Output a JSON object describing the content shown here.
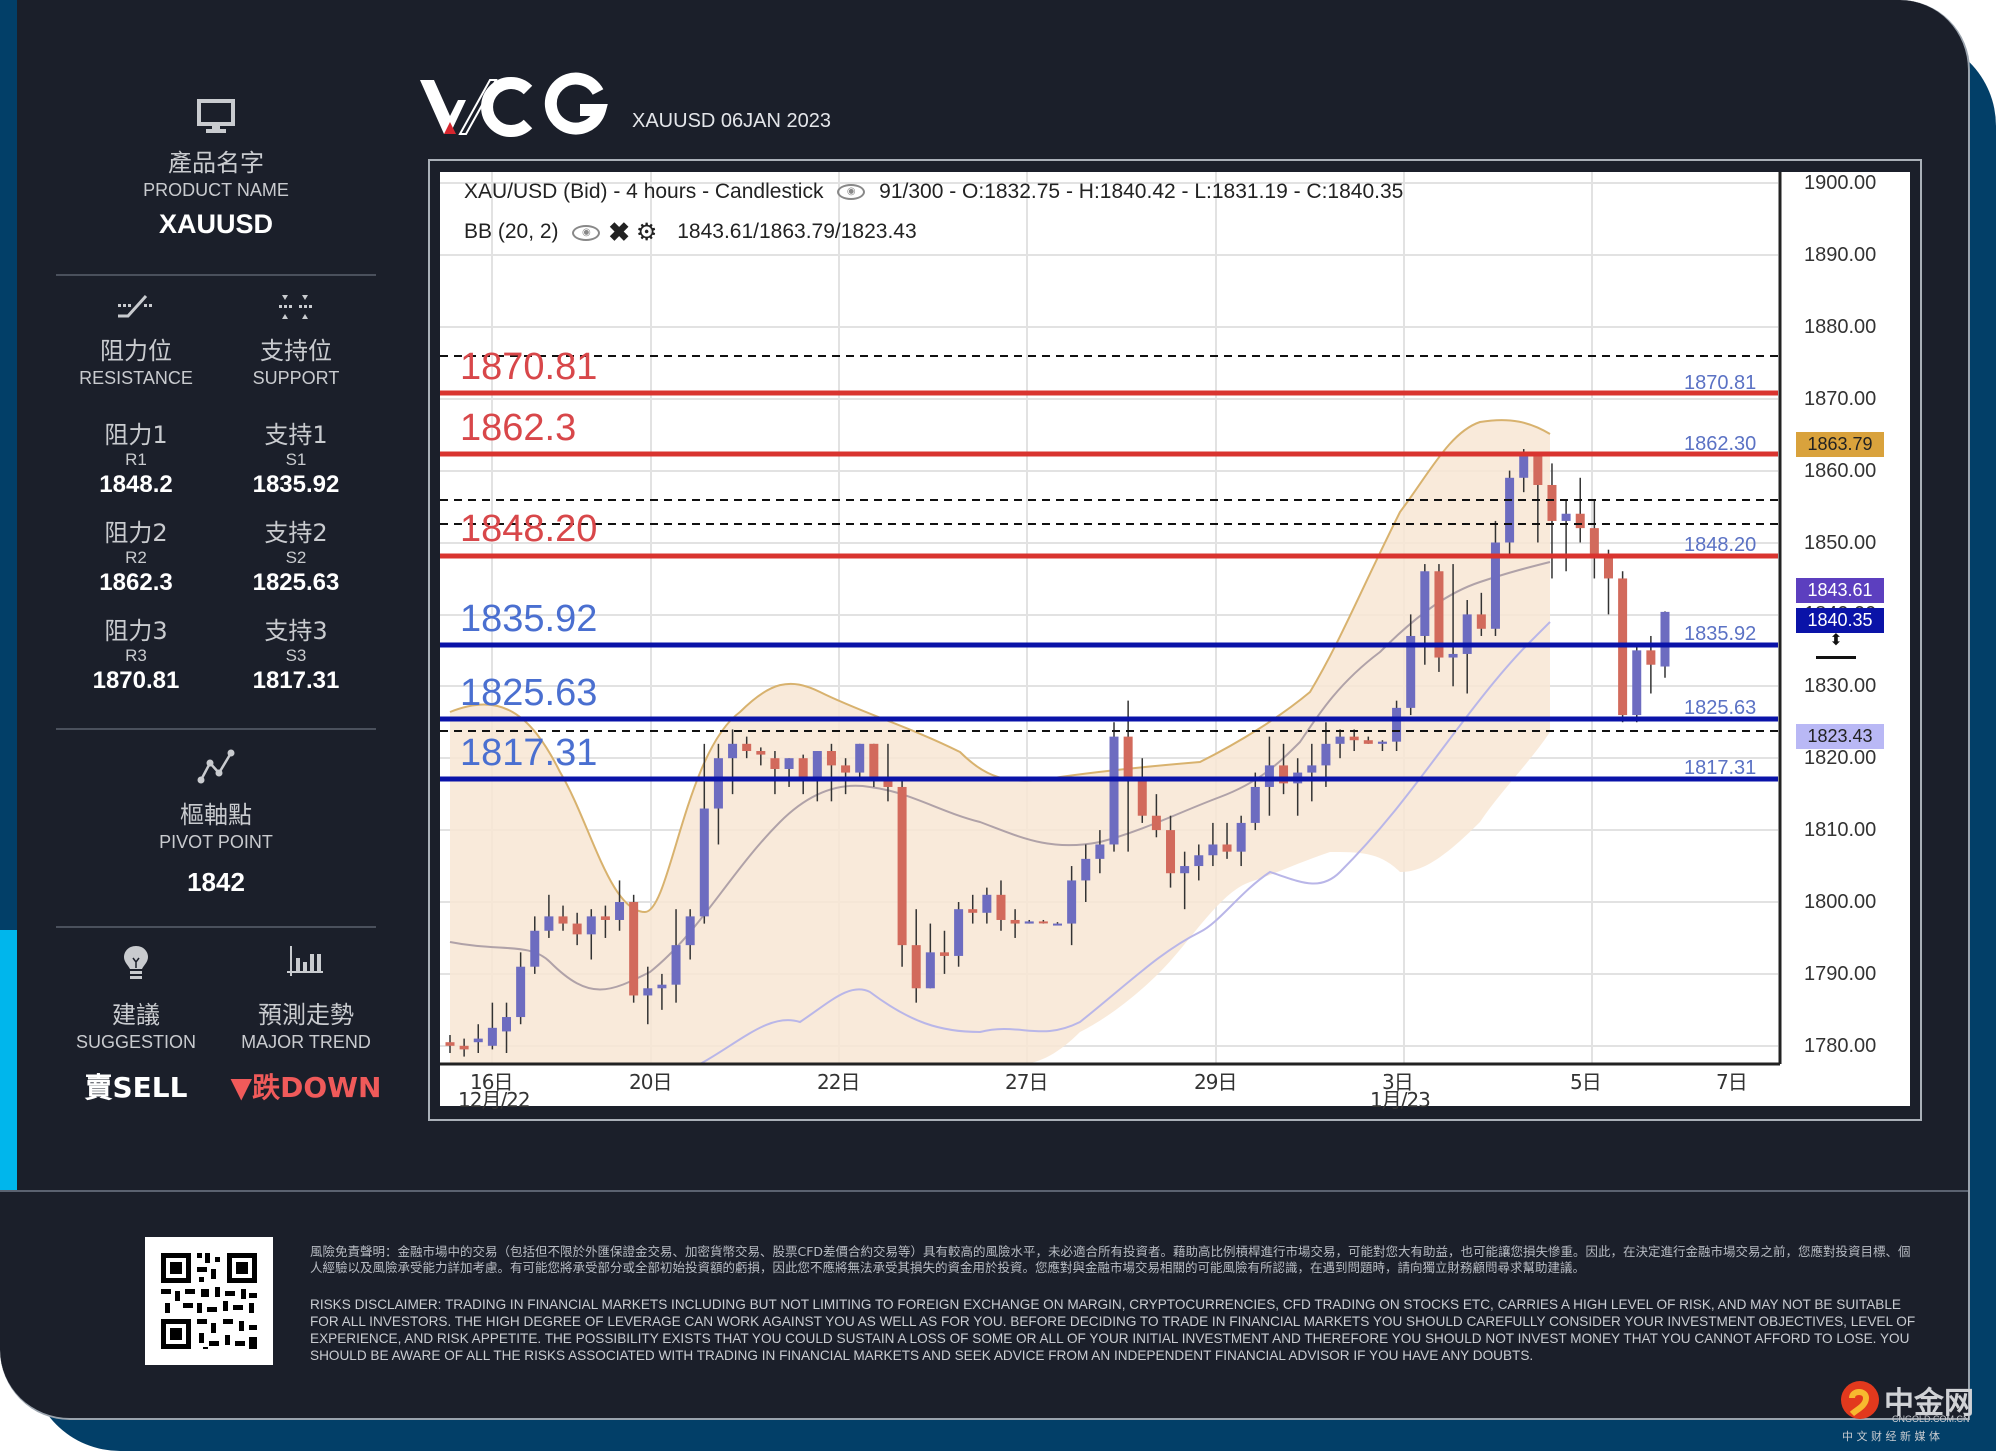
{
  "header": {
    "brand": "WCG",
    "subtitle": "XAUUSD 06JAN 2023"
  },
  "sidebar": {
    "product": {
      "icon": "monitor-icon",
      "label_cn": "產品名字",
      "label_en": "PRODUCT NAME",
      "value": "XAUUSD"
    },
    "resistance": {
      "icon": "resistance-icon",
      "label_cn": "阻力位",
      "label_en": "RESISTANCE",
      "levels": [
        {
          "label_cn": "阻力1",
          "code": "R1",
          "value": "1848.2"
        },
        {
          "label_cn": "阻力2",
          "code": "R2",
          "value": "1862.3"
        },
        {
          "label_cn": "阻力3",
          "code": "R3",
          "value": "1870.81"
        }
      ]
    },
    "support": {
      "icon": "support-icon",
      "label_cn": "支持位",
      "label_en": "SUPPORT",
      "levels": [
        {
          "label_cn": "支持1",
          "code": "S1",
          "value": "1835.92"
        },
        {
          "label_cn": "支持2",
          "code": "S2",
          "value": "1825.63"
        },
        {
          "label_cn": "支持3",
          "code": "S3",
          "value": "1817.31"
        }
      ]
    },
    "pivot": {
      "icon": "pivot-chart-icon",
      "label_cn": "樞軸點",
      "label_en": "PIVOT POINT",
      "value": "1842"
    },
    "suggestion": {
      "icon": "lightbulb-icon",
      "label_cn": "建議",
      "label_en": "SUGGESTION",
      "value": "賣SELL"
    },
    "trend": {
      "icon": "bar-chart-icon",
      "label_cn": "預測走勢",
      "label_en": "MAJOR TREND",
      "value": "▼跌DOWN",
      "color": "#f05a5a"
    }
  },
  "chart": {
    "title": "XAU/USD (Bid) - 4 hours - Candlestick",
    "bars_info": "91/300 - O:1832.75 - H:1840.42 - L:1831.19 - C:1840.35",
    "bb_label": "BB (20, 2)",
    "bb_values": "1843.61/1863.79/1823.43",
    "price_badges": {
      "bb_upper": "1863.79",
      "bb_mid": "1843.61",
      "last": "1840.35",
      "bb_lower": "1823.43"
    }
  },
  "chart_data": {
    "type": "candlestick",
    "title": "XAU/USD (Bid) - 4 hours - Candlestick",
    "xlabel": "",
    "ylabel": "",
    "ylim": [
      1778,
      1902
    ],
    "y_ticks": [
      "1900.00",
      "1890.00",
      "1880.00",
      "1870.00",
      "1860.00",
      "1850.00",
      "1840.00",
      "1830.00",
      "1820.00",
      "1810.00",
      "1800.00",
      "1790.00",
      "1780.00"
    ],
    "x_ticks": [
      {
        "label": "16日",
        "sub": "12月/22"
      },
      {
        "label": "20日",
        "sub": ""
      },
      {
        "label": "22日",
        "sub": ""
      },
      {
        "label": "27日",
        "sub": ""
      },
      {
        "label": "29日",
        "sub": ""
      },
      {
        "label": "3日",
        "sub": "1月/23"
      },
      {
        "label": "5日",
        "sub": ""
      },
      {
        "label": "7日",
        "sub": ""
      }
    ],
    "last_bar": {
      "open": 1832.75,
      "high": 1840.42,
      "low": 1831.19,
      "close": 1840.35
    },
    "bollinger": {
      "period": 20,
      "deviation": 2,
      "middle": 1843.61,
      "upper": 1863.79,
      "lower": 1823.43
    },
    "levels": {
      "resistance": [
        {
          "name": "R3",
          "value": 1870.81,
          "label": "1870.81"
        },
        {
          "name": "R2",
          "value": 1862.3,
          "label": "1862.3",
          "right_label": "1862.30"
        },
        {
          "name": "R1",
          "value": 1848.2,
          "label": "1848.20"
        }
      ],
      "support": [
        {
          "name": "S1",
          "value": 1835.92,
          "label": "1835.92"
        },
        {
          "name": "S2",
          "value": 1825.63,
          "label": "1825.63"
        },
        {
          "name": "S3",
          "value": 1817.31,
          "label": "1817.31"
        }
      ]
    },
    "candles_approx": [
      [
        1780.5,
        1781.5,
        1779,
        1780
      ],
      [
        1780,
        1781,
        1778.5,
        1779.5
      ],
      [
        1780.5,
        1783,
        1779,
        1781
      ],
      [
        1780,
        1786,
        1779.5,
        1782.5
      ],
      [
        1782,
        1786,
        1779,
        1784
      ],
      [
        1784,
        1793,
        1783,
        1791
      ],
      [
        1791,
        1798,
        1790,
        1796
      ],
      [
        1796,
        1801,
        1795,
        1798
      ],
      [
        1798,
        1799.5,
        1796,
        1797
      ],
      [
        1797,
        1798.5,
        1794,
        1795.5
      ],
      [
        1795.5,
        1799,
        1792,
        1798
      ],
      [
        1798,
        1799.5,
        1795,
        1797.5
      ],
      [
        1797.5,
        1803,
        1796,
        1800
      ],
      [
        1800,
        1801,
        1786,
        1787
      ],
      [
        1787,
        1791,
        1783,
        1788
      ],
      [
        1788,
        1790,
        1785,
        1788.5
      ],
      [
        1788.5,
        1799,
        1786,
        1794
      ],
      [
        1794,
        1799,
        1792,
        1798
      ],
      [
        1798,
        1822,
        1797,
        1813
      ],
      [
        1813,
        1822,
        1808,
        1820
      ],
      [
        1820,
        1824,
        1815,
        1822
      ],
      [
        1822,
        1823,
        1820,
        1821
      ],
      [
        1821,
        1821.5,
        1819,
        1820.5
      ],
      [
        1820,
        1821,
        1815,
        1818.5
      ],
      [
        1818.5,
        1820,
        1816,
        1820
      ],
      [
        1820,
        1820.5,
        1815,
        1817
      ],
      [
        1817,
        1821,
        1814,
        1821
      ],
      [
        1821,
        1822,
        1814,
        1819
      ],
      [
        1819,
        1820,
        1815,
        1818
      ],
      [
        1818,
        1822,
        1817,
        1822
      ],
      [
        1822,
        1822,
        1816,
        1817
      ],
      [
        1817,
        1822,
        1814,
        1816
      ],
      [
        1816,
        1817,
        1791,
        1794
      ],
      [
        1794,
        1799,
        1786,
        1788
      ],
      [
        1788,
        1797,
        1788,
        1793
      ],
      [
        1793,
        1796,
        1790,
        1792.5
      ],
      [
        1792.5,
        1800,
        1791,
        1799
      ],
      [
        1799,
        1801,
        1797,
        1798.5
      ],
      [
        1798.5,
        1802,
        1797,
        1801
      ],
      [
        1801,
        1803,
        1796,
        1797.5
      ],
      [
        1797.5,
        1799,
        1795,
        1797
      ],
      [
        1797,
        1797.5,
        1797,
        1797.3
      ],
      [
        1797.3,
        1797.5,
        1797,
        1797.2
      ],
      [
        1797,
        1797.2,
        1797,
        1797
      ],
      [
        1797,
        1805,
        1794,
        1803
      ],
      [
        1803,
        1808,
        1800,
        1806
      ],
      [
        1806,
        1810,
        1804,
        1808
      ],
      [
        1808,
        1825,
        1807,
        1823
      ],
      [
        1823,
        1828,
        1807,
        1817
      ],
      [
        1817,
        1820,
        1811,
        1812
      ],
      [
        1812,
        1815,
        1809,
        1810
      ],
      [
        1810,
        1812,
        1802,
        1804
      ],
      [
        1804,
        1807,
        1799,
        1805
      ],
      [
        1805,
        1808,
        1803,
        1806.5
      ],
      [
        1806.5,
        1811,
        1805,
        1808
      ],
      [
        1808,
        1811,
        1806,
        1807
      ],
      [
        1807,
        1812,
        1805,
        1811
      ],
      [
        1811,
        1818,
        1810,
        1816
      ],
      [
        1816,
        1823,
        1812,
        1819
      ],
      [
        1819,
        1822,
        1815,
        1816.5
      ],
      [
        1816.5,
        1820,
        1812,
        1818
      ],
      [
        1818,
        1822,
        1814,
        1819
      ],
      [
        1819,
        1825,
        1816,
        1822
      ],
      [
        1822,
        1824,
        1820,
        1823
      ],
      [
        1823,
        1824,
        1821,
        1822.5
      ],
      [
        1822.5,
        1823,
        1822,
        1822
      ],
      [
        1822,
        1822.5,
        1821,
        1822.3
      ],
      [
        1822.3,
        1828,
        1821,
        1827
      ],
      [
        1827,
        1840,
        1826,
        1837
      ],
      [
        1837,
        1847,
        1833,
        1846
      ],
      [
        1846,
        1847,
        1832,
        1834
      ],
      [
        1834,
        1847,
        1830,
        1834.5
      ],
      [
        1834.5,
        1842,
        1829,
        1840
      ],
      [
        1840,
        1843,
        1837,
        1838
      ],
      [
        1838,
        1853,
        1837,
        1850
      ],
      [
        1850,
        1860,
        1848,
        1859
      ],
      [
        1859,
        1863,
        1857,
        1862
      ],
      [
        1862,
        1862.5,
        1850,
        1858
      ],
      [
        1858,
        1861,
        1845,
        1853
      ],
      [
        1853,
        1856,
        1846,
        1854
      ],
      [
        1854,
        1859,
        1850,
        1852
      ],
      [
        1852,
        1856,
        1845,
        1848
      ],
      [
        1848,
        1849,
        1840,
        1845
      ],
      [
        1845,
        1846,
        1825,
        1826
      ],
      [
        1826,
        1836,
        1825,
        1835
      ],
      [
        1835,
        1837,
        1829,
        1833
      ],
      [
        1832.75,
        1840.42,
        1831.19,
        1840.35
      ]
    ]
  },
  "footer": {
    "qr_icon": "qr-code-icon",
    "disclaimer_cn": "風險免責聲明：金融市場中的交易（包括但不限於外匯保證金交易、加密貨幣交易、股票CFD差價合約交易等）具有較高的風險水平，未必適合所有投資者。藉助高比例槓桿進行市場交易，可能對您大有助益，也可能讓您損失慘重。因此，在決定進行金融市場交易之前，您應對投資目標、個人經驗以及風險承受能力詳加考慮。有可能您將承受部分或全部初始投資額的虧損，因此您不應將無法承受其損失的資金用於投資。您應對與金融市場交易相關的可能風險有所認識，在遇到問題時，請向獨立財務顧問尋求幫助建議。",
    "disclaimer_en": "RISKS DISCLAIMER: TRADING IN FINANCIAL MARKETS INCLUDING BUT NOT LIMITING TO FOREIGN EXCHANGE ON MARGIN, CRYPTOCURRENCIES, CFD TRADING ON STOCKS ETC, CARRIES A HIGH LEVEL OF RISK, AND MAY NOT BE SUITABLE FOR ALL INVESTORS. THE HIGH DEGREE OF LEVERAGE CAN WORK AGAINST YOU AS WELL AS FOR YOU. BEFORE DECIDING TO TRADE IN FINANCIAL MARKETS YOU SHOULD CAREFULLY CONSIDER YOUR INVESTMENT OBJECTIVES, LEVEL OF EXPERIENCE, AND RISK APPETITE. THE POSSIBILITY EXISTS THAT YOU COULD SUSTAIN A LOSS OF SOME OR ALL OF YOUR INITIAL INVESTMENT AND THEREFORE YOU SHOULD NOT INVEST MONEY THAT YOU CANNOT AFFORD TO LOSE. YOU SHOULD BE AWARE OF ALL THE RISKS ASSOCIATED WITH TRADING IN FINANCIAL MARKETS AND SEEK ADVICE FROM AN INDEPENDENT FINANCIAL ADVISOR IF YOU HAVE ANY DOUBTS.",
    "watermark": {
      "name": "中金网",
      "domain": "CNGOLD.COM.CN",
      "tagline": "中 文 财 经 新 媒 体"
    }
  },
  "colors": {
    "background": "#1b1f2a",
    "accent_blue": "#023f68",
    "accent_cyan": "#00b6ec",
    "resistance": "#d9342f",
    "support": "#0a13a8",
    "down": "#f05a5a",
    "bull_candle": "#6d6cc0",
    "bear_candle": "#d26a5c",
    "bb_fill": "#f8e6d3"
  }
}
